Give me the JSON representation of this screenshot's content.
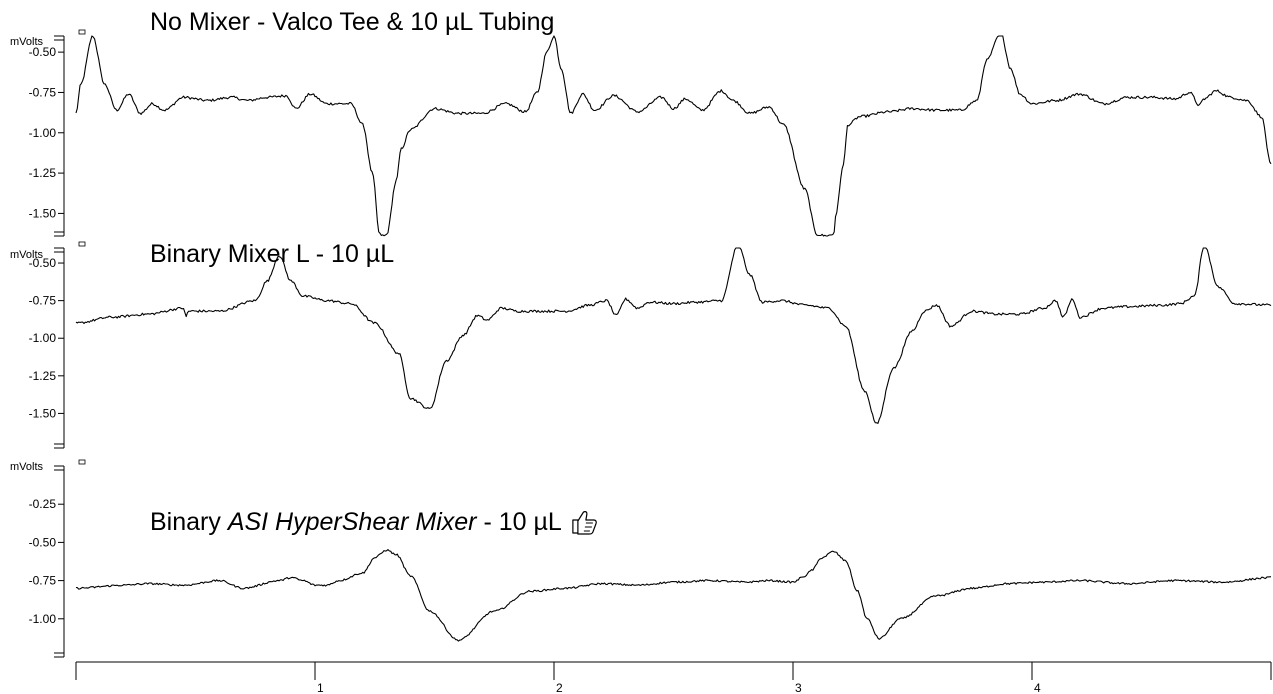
{
  "chart_data": {
    "type": "line",
    "x_axis": {
      "range": [
        0,
        5
      ],
      "tick_labels": [
        "1",
        "2",
        "3",
        "4"
      ],
      "tick_values": [
        1,
        2,
        3,
        4
      ]
    },
    "panels": [
      {
        "title_parts": [
          {
            "text": "No Mixer - Valco Tee &  10 µL Tubing",
            "italic": false
          }
        ],
        "ylabel": "mVolts",
        "ylim": [
          -1.64,
          -0.4
        ],
        "y_ticks": [
          "-0.50",
          "-0.75",
          "-1.00",
          "-1.25",
          "-1.50"
        ],
        "y_tick_values": [
          -0.5,
          -0.75,
          -1.0,
          -1.25,
          -1.5
        ],
        "noise": 0.008,
        "series": {
          "x": [
            0,
            0.02,
            0.07,
            0.12,
            0.17,
            0.22,
            0.27,
            0.32,
            0.37,
            0.45,
            0.55,
            0.65,
            0.72,
            0.8,
            0.88,
            0.92,
            0.98,
            1.05,
            1.15,
            1.2,
            1.24,
            1.27,
            1.29,
            1.3,
            1.34,
            1.36,
            1.4,
            1.5,
            1.6,
            1.7,
            1.8,
            1.88,
            1.93,
            1.97,
            2.0,
            2.03,
            2.07,
            2.12,
            2.17,
            2.25,
            2.35,
            2.45,
            2.5,
            2.55,
            2.62,
            2.7,
            2.75,
            2.82,
            2.9,
            2.96,
            3.05,
            3.1,
            3.14,
            3.17,
            3.18,
            3.21,
            3.23,
            3.28,
            3.4,
            3.5,
            3.6,
            3.7,
            3.77,
            3.81,
            3.87,
            3.91,
            3.95,
            4.0,
            4.1,
            4.2,
            4.3,
            4.4,
            4.5,
            4.6,
            4.66,
            4.7,
            4.72,
            4.77,
            4.83,
            4.9,
            4.96,
            5.0
          ],
          "y": [
            -0.88,
            -0.7,
            -0.4,
            -0.7,
            -0.86,
            -0.76,
            -0.88,
            -0.82,
            -0.86,
            -0.78,
            -0.8,
            -0.78,
            -0.8,
            -0.78,
            -0.77,
            -0.85,
            -0.76,
            -0.82,
            -0.82,
            -0.95,
            -1.25,
            -1.63,
            -1.64,
            -1.63,
            -1.3,
            -1.1,
            -0.98,
            -0.85,
            -0.88,
            -0.88,
            -0.82,
            -0.87,
            -0.75,
            -0.5,
            -0.4,
            -0.6,
            -0.88,
            -0.76,
            -0.86,
            -0.77,
            -0.87,
            -0.78,
            -0.85,
            -0.79,
            -0.86,
            -0.74,
            -0.8,
            -0.88,
            -0.84,
            -0.95,
            -1.35,
            -1.63,
            -1.64,
            -1.63,
            -1.5,
            -1.2,
            -0.95,
            -0.9,
            -0.87,
            -0.85,
            -0.86,
            -0.86,
            -0.8,
            -0.55,
            -0.38,
            -0.6,
            -0.76,
            -0.82,
            -0.8,
            -0.76,
            -0.82,
            -0.78,
            -0.78,
            -0.79,
            -0.75,
            -0.83,
            -0.79,
            -0.74,
            -0.78,
            -0.8,
            -0.9,
            -1.2
          ]
        }
      },
      {
        "title_parts": [
          {
            "text": "Binary Mixer L - 10 µL",
            "italic": false
          }
        ],
        "ylabel": "mVolts",
        "ylim": [
          -1.73,
          -0.4
        ],
        "y_ticks": [
          "-0.50",
          "-0.75",
          "-1.00",
          "-1.25",
          "-1.50"
        ],
        "y_tick_values": [
          -0.5,
          -0.75,
          -1.0,
          -1.25,
          -1.5
        ],
        "noise": 0.008,
        "series": {
          "x": [
            0,
            0.15,
            0.3,
            0.45,
            0.46,
            0.47,
            0.6,
            0.75,
            0.8,
            0.85,
            0.9,
            0.95,
            1.05,
            1.15,
            1.25,
            1.35,
            1.4,
            1.48,
            1.55,
            1.62,
            1.68,
            1.72,
            1.78,
            1.85,
            1.95,
            2.05,
            2.15,
            2.22,
            2.26,
            2.3,
            2.35,
            2.4,
            2.5,
            2.6,
            2.7,
            2.77,
            2.82,
            2.87,
            2.95,
            3.05,
            3.15,
            3.22,
            3.3,
            3.35,
            3.42,
            3.5,
            3.55,
            3.6,
            3.66,
            3.75,
            3.85,
            3.95,
            4.05,
            4.1,
            4.13,
            4.17,
            4.2,
            4.3,
            4.4,
            4.55,
            4.62,
            4.68,
            4.72,
            4.78,
            4.85,
            5.0
          ],
          "y": [
            -0.9,
            -0.86,
            -0.84,
            -0.8,
            -0.86,
            -0.82,
            -0.82,
            -0.75,
            -0.62,
            -0.45,
            -0.62,
            -0.72,
            -0.75,
            -0.77,
            -0.9,
            -1.1,
            -1.4,
            -1.47,
            -1.15,
            -0.98,
            -0.85,
            -0.88,
            -0.8,
            -0.82,
            -0.82,
            -0.82,
            -0.78,
            -0.75,
            -0.85,
            -0.74,
            -0.8,
            -0.76,
            -0.77,
            -0.76,
            -0.75,
            -0.38,
            -0.58,
            -0.76,
            -0.75,
            -0.78,
            -0.8,
            -0.92,
            -1.35,
            -1.57,
            -1.2,
            -0.95,
            -0.82,
            -0.78,
            -0.92,
            -0.82,
            -0.84,
            -0.84,
            -0.8,
            -0.75,
            -0.86,
            -0.74,
            -0.86,
            -0.8,
            -0.79,
            -0.78,
            -0.77,
            -0.72,
            -0.38,
            -0.66,
            -0.77,
            -0.78
          ]
        }
      },
      {
        "title_parts": [
          {
            "text": "Binary ",
            "italic": false
          },
          {
            "text": "ASI HyperShear Mixer",
            "italic": true
          },
          {
            "text": " - 10 µL",
            "italic": false
          }
        ],
        "ylabel": "mVolts",
        "ylim": [
          -1.25,
          0.0
        ],
        "y_ticks": [
          "-0.25",
          "-0.50",
          "-0.75",
          "-1.00"
        ],
        "y_tick_values": [
          -0.25,
          -0.5,
          -0.75,
          -1.0
        ],
        "noise": 0.006,
        "series": {
          "x": [
            0,
            0.2,
            0.3,
            0.45,
            0.6,
            0.7,
            0.85,
            0.9,
            0.95,
            1.0,
            1.05,
            1.1,
            1.2,
            1.25,
            1.3,
            1.34,
            1.4,
            1.48,
            1.6,
            1.75,
            1.9,
            2.05,
            2.2,
            2.35,
            2.5,
            2.65,
            2.8,
            2.9,
            3.0,
            3.05,
            3.08,
            3.12,
            3.17,
            3.22,
            3.27,
            3.31,
            3.36,
            3.45,
            3.6,
            3.75,
            3.9,
            4.05,
            4.2,
            4.4,
            4.6,
            4.8,
            5.0
          ],
          "y": [
            -0.8,
            -0.78,
            -0.77,
            -0.78,
            -0.75,
            -0.8,
            -0.75,
            -0.73,
            -0.75,
            -0.78,
            -0.78,
            -0.75,
            -0.7,
            -0.6,
            -0.55,
            -0.58,
            -0.72,
            -0.95,
            -1.14,
            -0.95,
            -0.82,
            -0.8,
            -0.77,
            -0.78,
            -0.76,
            -0.75,
            -0.76,
            -0.75,
            -0.76,
            -0.72,
            -0.68,
            -0.6,
            -0.56,
            -0.62,
            -0.82,
            -1.0,
            -1.13,
            -1.0,
            -0.85,
            -0.8,
            -0.77,
            -0.76,
            -0.75,
            -0.77,
            -0.75,
            -0.76,
            -0.73
          ]
        }
      }
    ]
  }
}
